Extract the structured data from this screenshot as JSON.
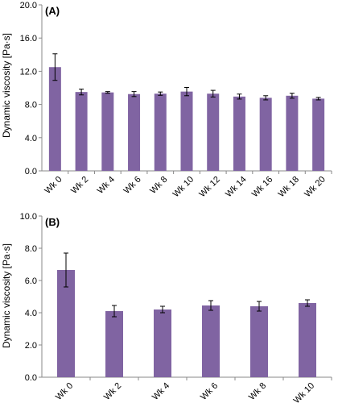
{
  "chart_data": [
    {
      "type": "bar",
      "panel_label": "(A)",
      "ylabel": "Dynamic viscosity [Pa·s]",
      "ylim": [
        0,
        20
      ],
      "yticks": [
        "0.0",
        "4.0",
        "8.0",
        "12.0",
        "16.0",
        "20.0"
      ],
      "categories": [
        "Wk 0",
        "Wk 2",
        "Wk 4",
        "Wk 6",
        "Wk 8",
        "Wk 10",
        "Wk 12",
        "Wk 14",
        "Wk 16",
        "Wk 18",
        "Wk 20"
      ],
      "values": [
        12.5,
        9.5,
        9.45,
        9.25,
        9.3,
        9.55,
        9.3,
        8.95,
        8.8,
        9.05,
        8.7
      ],
      "errors": [
        1.6,
        0.35,
        0.1,
        0.3,
        0.2,
        0.5,
        0.4,
        0.3,
        0.25,
        0.3,
        0.15
      ],
      "bar_color": "#8064a2",
      "grid": false
    },
    {
      "type": "bar",
      "panel_label": "(B)",
      "ylabel": "Dynamic viscosity [Pa·s]",
      "ylim": [
        0,
        10
      ],
      "yticks": [
        "0.0",
        "2.0",
        "4.0",
        "6.0",
        "8.0",
        "10.0"
      ],
      "categories": [
        "Wk 0",
        "Wk 2",
        "Wk 4",
        "Wk 6",
        "Wk 8",
        "Wk 10"
      ],
      "values": [
        6.65,
        4.1,
        4.2,
        4.45,
        4.4,
        4.6
      ],
      "errors": [
        1.05,
        0.35,
        0.2,
        0.3,
        0.3,
        0.2
      ],
      "bar_color": "#8064a2",
      "grid": false
    }
  ]
}
